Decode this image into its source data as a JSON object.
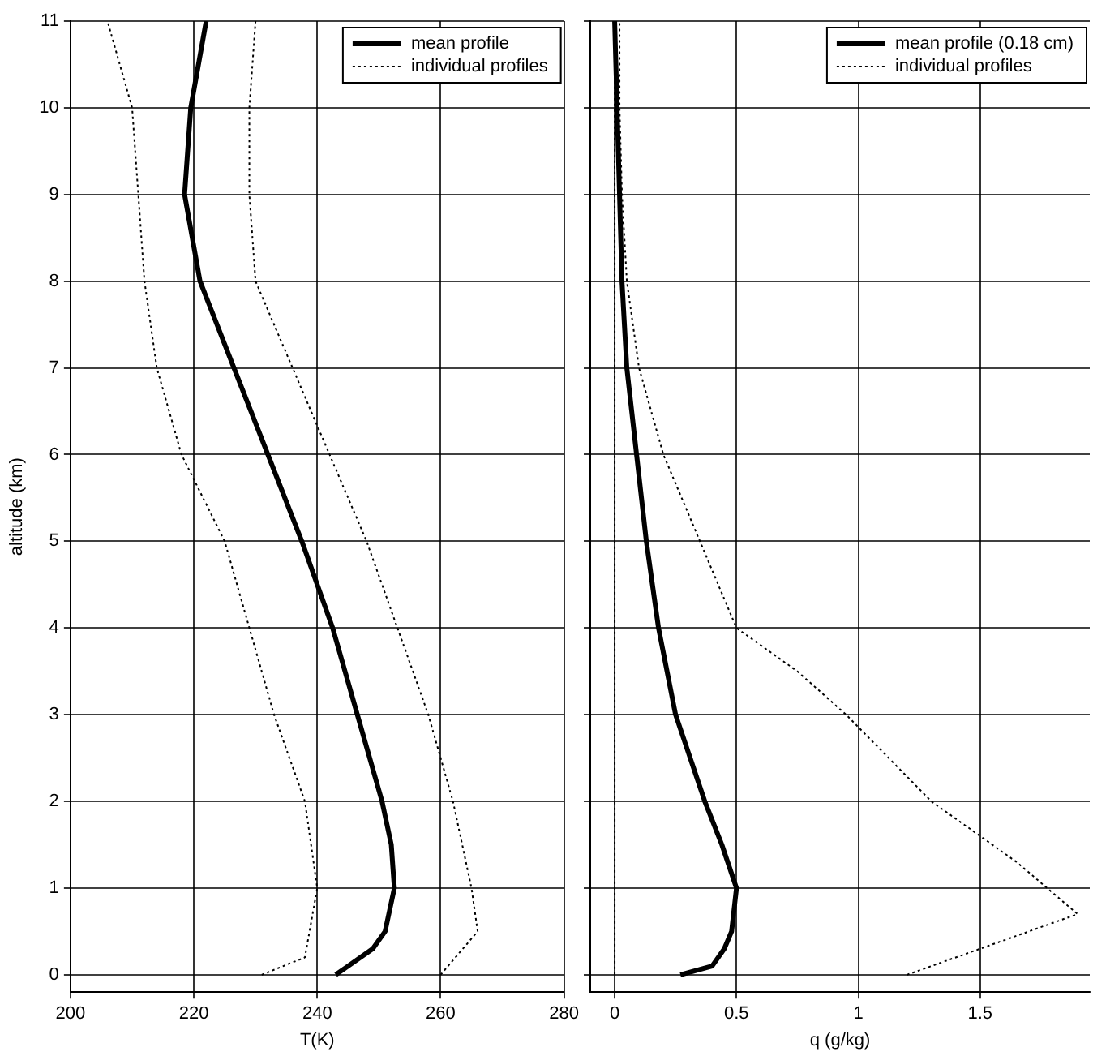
{
  "chart_data": [
    {
      "type": "line",
      "xlabel": "T(K)",
      "ylabel": "altitude (km)",
      "xlim": [
        200,
        280
      ],
      "xticks": [
        200,
        220,
        240,
        260,
        280
      ],
      "ylim": [
        -0.2,
        11
      ],
      "yticks": [
        0,
        1,
        2,
        3,
        4,
        5,
        6,
        7,
        8,
        9,
        10,
        11
      ],
      "grid": true,
      "legend": "top right",
      "series": [
        {
          "name": "mean profile",
          "color": "#000000",
          "line_style": "solid",
          "x": [
            243,
            245,
            249,
            251,
            252.5,
            252,
            250.5,
            246.5,
            242.5,
            237.5,
            232,
            226.5,
            221,
            218.5,
            219.5,
            222
          ],
          "values": [
            0,
            0.1,
            0.3,
            0.5,
            1,
            1.5,
            2,
            3,
            4,
            5,
            6,
            7,
            8,
            9,
            10,
            11
          ]
        },
        {
          "name": "individual profiles",
          "color": "#000000",
          "line_style": "dotted",
          "x": [
            231,
            238,
            240,
            238,
            233,
            229,
            225,
            218,
            214,
            212,
            211,
            210,
            206
          ],
          "values": [
            0,
            0.2,
            1,
            2,
            3,
            4,
            5,
            6,
            7,
            8,
            9,
            10,
            11
          ]
        },
        {
          "color": "#000000",
          "line_style": "dotted",
          "x": [
            260,
            266,
            265,
            262,
            258,
            253,
            248,
            242,
            236,
            230,
            229,
            229,
            230
          ],
          "values": [
            0,
            0.5,
            1,
            2,
            3,
            4,
            5,
            6,
            7,
            8,
            9,
            10,
            11
          ]
        }
      ]
    },
    {
      "type": "line",
      "xlabel": "q (g/kg)",
      "xlim": [
        -0.1,
        1.95
      ],
      "xticks": [
        0,
        0.5,
        1,
        1.5
      ],
      "ylim": [
        -0.2,
        11
      ],
      "yticks": [
        0,
        1,
        2,
        3,
        4,
        5,
        6,
        7,
        8,
        9,
        10,
        11
      ],
      "tick_labels": "x",
      "grid": true,
      "legend": "top right",
      "series": [
        {
          "name": "mean profile (0.18 cm)",
          "color": "#000000",
          "line_style": "solid",
          "x": [
            0.27,
            0.4,
            0.45,
            0.48,
            0.5,
            0.44,
            0.37,
            0.25,
            0.18,
            0.13,
            0.09,
            0.05,
            0.03,
            0.02,
            0.01,
            0
          ],
          "values": [
            0,
            0.1,
            0.3,
            0.5,
            1,
            1.5,
            2,
            3,
            4,
            5,
            6,
            7,
            8,
            9,
            10,
            11
          ]
        },
        {
          "name": "individual profiles",
          "color": "#000000",
          "line_style": "dotted",
          "x": [
            0,
            0,
            0,
            0,
            0,
            0,
            0,
            0,
            0,
            0,
            0,
            0
          ],
          "values": [
            0,
            1,
            2,
            3,
            4,
            5,
            6,
            7,
            8,
            9,
            10,
            11
          ]
        },
        {
          "color": "#000000",
          "line_style": "dotted",
          "x": [
            1.2,
            1.9,
            1.65,
            1.3,
            0.95,
            0.75,
            0.5,
            0.35,
            0.2,
            0.1,
            0.05,
            0.03,
            0.02,
            0.02
          ],
          "values": [
            0,
            0.7,
            1.3,
            2,
            3,
            3.5,
            4,
            5,
            6,
            7,
            8,
            9,
            10,
            11
          ]
        }
      ]
    }
  ]
}
